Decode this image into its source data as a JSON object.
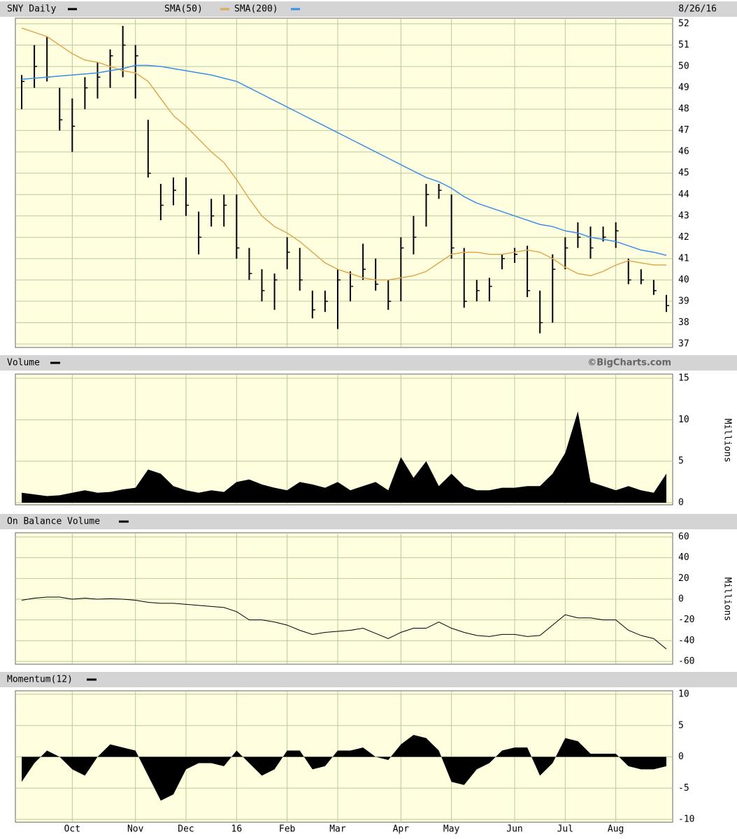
{
  "chart_data": [
    {
      "type": "ohlc",
      "title": "SNY Daily",
      "date_label": "8/26/16",
      "color": "#000000",
      "high": [
        49.6,
        51,
        51.4,
        49,
        48.5,
        49.5,
        50.2,
        50.8,
        51.9,
        51,
        47.5,
        44.5,
        44.8,
        44.8,
        43.2,
        43.8,
        44,
        44,
        41.5,
        40.5,
        40.3,
        42,
        41.5,
        39.5,
        39.5,
        40.5,
        40.4,
        41.7,
        41,
        40,
        42,
        43,
        44.5,
        44.5,
        44,
        41.5,
        40,
        40.1,
        41.2,
        41.5,
        41.6,
        39.5,
        41.2,
        42,
        42.7,
        42.5,
        42.5,
        42.7,
        41,
        40.5,
        40,
        39.3
      ],
      "low": [
        48,
        49,
        49.3,
        47,
        46,
        48,
        48.5,
        49,
        49.5,
        48.5,
        44.8,
        42.8,
        43.5,
        43,
        41.2,
        42.5,
        42.5,
        41,
        40,
        39,
        38.6,
        40.5,
        39.5,
        38.2,
        38.5,
        37.7,
        39,
        40,
        39.5,
        38.6,
        39,
        41.2,
        42.5,
        43.8,
        41,
        38.7,
        39,
        39,
        40.5,
        40.8,
        39.2,
        37.5,
        38,
        40.5,
        41.5,
        41,
        41.8,
        41.5,
        39.8,
        39.8,
        39.3,
        38.5
      ],
      "close": [
        49.3,
        50,
        49.5,
        47.5,
        47.2,
        49,
        49.5,
        50.5,
        51,
        50.5,
        45,
        43.5,
        44.2,
        43.5,
        42,
        43,
        43.5,
        41.5,
        40.3,
        39.5,
        40,
        41.3,
        40,
        38.6,
        39,
        40,
        39.7,
        40.5,
        39.8,
        39,
        41.5,
        42,
        44,
        44.2,
        41.5,
        39,
        39.5,
        39.7,
        41,
        41.2,
        39.5,
        38,
        40.5,
        41.5,
        42,
        41.5,
        42,
        42.3,
        40,
        40,
        39.5,
        38.8
      ],
      "series": [
        {
          "name": "SMA(50)",
          "color": "#e0a850",
          "values": [
            51.8,
            51.6,
            51.4,
            51,
            50.6,
            50.3,
            50.2,
            50,
            49.8,
            49.7,
            49.3,
            48.5,
            47.7,
            47.2,
            46.6,
            46,
            45.5,
            44.7,
            43.8,
            43,
            42.5,
            42.2,
            41.8,
            41.3,
            40.8,
            40.5,
            40.3,
            40.1,
            40,
            40,
            40.1,
            40.2,
            40.4,
            40.8,
            41.2,
            41.3,
            41.3,
            41.2,
            41.2,
            41.3,
            41.4,
            41.3,
            41,
            40.6,
            40.3,
            40.2,
            40.4,
            40.7,
            40.9,
            40.8,
            40.7,
            40.7
          ]
        },
        {
          "name": "SMA(200)",
          "color": "#3a8ee6",
          "values": [
            49.4,
            49.45,
            49.5,
            49.55,
            49.6,
            49.65,
            49.7,
            49.8,
            49.9,
            50.05,
            50.05,
            50,
            49.9,
            49.8,
            49.7,
            49.6,
            49.45,
            49.3,
            49,
            48.7,
            48.4,
            48.1,
            47.8,
            47.5,
            47.2,
            46.9,
            46.6,
            46.3,
            46,
            45.7,
            45.4,
            45.1,
            44.8,
            44.6,
            44.3,
            43.9,
            43.6,
            43.4,
            43.2,
            43,
            42.8,
            42.6,
            42.5,
            42.3,
            42.2,
            42,
            41.9,
            41.8,
            41.6,
            41.4,
            41.3,
            41.15
          ]
        }
      ],
      "ylim": [
        37,
        52
      ],
      "yticks": [
        37,
        38,
        39,
        40,
        41,
        42,
        43,
        44,
        45,
        46,
        47,
        48,
        49,
        50,
        51,
        52
      ],
      "grid": true
    },
    {
      "type": "area",
      "title": "Volume",
      "source": "©BigCharts.com",
      "ylabel": "Millions",
      "color": "#000000",
      "values": [
        1.2,
        1,
        0.8,
        0.9,
        1.2,
        1.5,
        1.2,
        1.3,
        1.6,
        1.8,
        4,
        3.5,
        2,
        1.5,
        1.2,
        1.5,
        1.3,
        2.5,
        2.8,
        2.2,
        1.8,
        1.5,
        2.5,
        2.2,
        1.8,
        2.5,
        1.5,
        2,
        2.5,
        1.5,
        5.5,
        3,
        5,
        2,
        3.5,
        2,
        1.5,
        1.5,
        1.8,
        1.8,
        2,
        2,
        3.5,
        6,
        11,
        2.5,
        2,
        1.5,
        2,
        1.5,
        1.2,
        3.5
      ],
      "ylim": [
        0,
        15
      ],
      "yticks": [
        0,
        5,
        10,
        15
      ],
      "grid": true
    },
    {
      "type": "line",
      "title": "On Balance Volume",
      "ylabel": "Millions",
      "color": "#000000",
      "values": [
        -1,
        1,
        2,
        2,
        0,
        1,
        0,
        0.5,
        0,
        -1,
        -3,
        -4,
        -4,
        -5,
        -6,
        -7,
        -8,
        -12,
        -20,
        -20,
        -22,
        -25,
        -30,
        -34,
        -32,
        -31,
        -30,
        -28,
        -33,
        -38,
        -32,
        -28,
        -28,
        -22,
        -28,
        -32,
        -35,
        -36,
        -34,
        -34,
        -36,
        -35,
        -25,
        -15,
        -18,
        -18,
        -20,
        -20,
        -30,
        -35,
        -38,
        -48
      ],
      "ylim": [
        -60,
        60
      ],
      "yticks": [
        -60,
        -40,
        -20,
        0,
        20,
        40,
        60
      ],
      "grid": true
    },
    {
      "type": "area",
      "title": "Momentum(12)",
      "color": "#000000",
      "values": [
        -4,
        -1,
        1,
        0,
        -2,
        -3,
        0,
        2,
        1.5,
        1,
        -3,
        -7,
        -6,
        -2,
        -1,
        -1,
        -1.5,
        1,
        -1,
        -3,
        -2,
        1,
        1,
        -2,
        -1.5,
        1,
        1,
        1.5,
        0,
        -0.5,
        2,
        3.5,
        3,
        1,
        -4,
        -4.5,
        -2,
        -1,
        1,
        1.5,
        1.5,
        -3,
        -1,
        3,
        2.5,
        0.5,
        0.5,
        0.5,
        -1.5,
        -2,
        -2,
        -1.5
      ],
      "categories": [
        null,
        null,
        null,
        null,
        "Oct",
        null,
        null,
        null,
        null,
        "Nov",
        null,
        null,
        null,
        "Dec",
        null,
        null,
        null,
        "16",
        null,
        null,
        null,
        "Feb",
        null,
        null,
        null,
        "Mar",
        null,
        null,
        null,
        null,
        "Apr",
        null,
        null,
        null,
        "May",
        null,
        null,
        null,
        null,
        "Jun",
        null,
        null,
        null,
        "Jul",
        null,
        null,
        null,
        "Aug",
        null,
        null,
        null,
        null
      ],
      "ylim": [
        -10,
        10
      ],
      "yticks": [
        -10,
        -5,
        0,
        5,
        10
      ],
      "grid": true
    }
  ]
}
